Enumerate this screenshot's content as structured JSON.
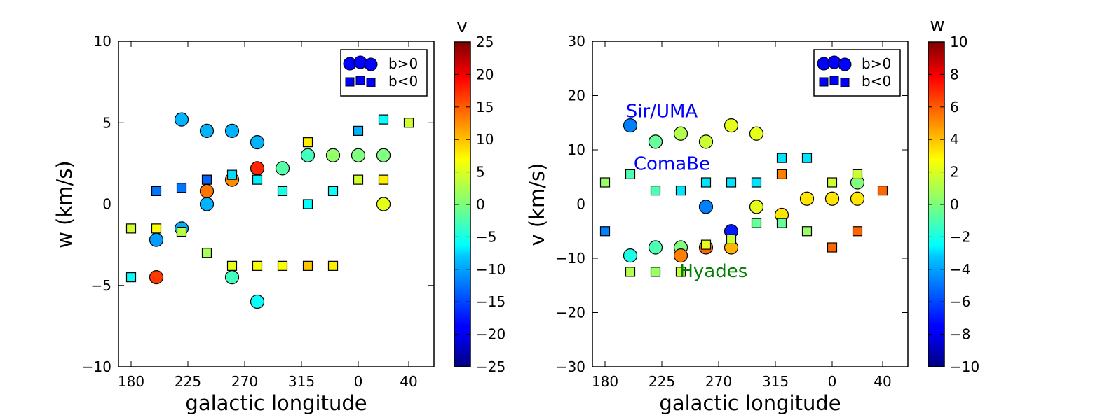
{
  "chart_data": [
    {
      "type": "scatter",
      "xlabel": "galactic longitude",
      "ylabel": "w (km/s)",
      "xticks": [
        "180",
        "225",
        "270",
        "315",
        "0",
        "40"
      ],
      "xtick_values": [
        180,
        225,
        270,
        315,
        360,
        400
      ],
      "xlim": [
        170,
        420
      ],
      "ylim": [
        -10,
        10
      ],
      "yticks": [
        10,
        5,
        0,
        -5,
        -10
      ],
      "ytick_labels": [
        "10",
        "5",
        "0",
        "−5",
        "−10"
      ],
      "grid": false,
      "legend_position": "top-right",
      "legend": [
        {
          "label": "b>0",
          "marker": "circle"
        },
        {
          "label": "b<0",
          "marker": "square"
        }
      ],
      "colorbar": {
        "label": "v",
        "min": -25,
        "max": 25,
        "ticks": [
          25,
          20,
          15,
          10,
          5,
          0,
          -5,
          -10,
          -15,
          -20,
          -25
        ],
        "tick_labels": [
          "25",
          "20",
          "15",
          "10",
          "5",
          "0",
          "−5",
          "−10",
          "−15",
          "−20",
          "−25"
        ]
      },
      "series": [
        {
          "name": "b>0",
          "marker": "circle",
          "points": [
            {
              "x": 200,
              "y": -2.2,
              "c": -11
            },
            {
              "x": 200,
              "y": -4.5,
              "c": 16
            },
            {
              "x": 220,
              "y": 5.2,
              "c": -10
            },
            {
              "x": 220,
              "y": -1.5,
              "c": -10
            },
            {
              "x": 240,
              "y": 4.5,
              "c": -10
            },
            {
              "x": 240,
              "y": 0,
              "c": -10
            },
            {
              "x": 240,
              "y": 0.8,
              "c": 13
            },
            {
              "x": 260,
              "y": 4.5,
              "c": -10
            },
            {
              "x": 260,
              "y": 1.5,
              "c": 12
            },
            {
              "x": 260,
              "y": -4.5,
              "c": -3
            },
            {
              "x": 280,
              "y": 3.8,
              "c": -10
            },
            {
              "x": 280,
              "y": 2.2,
              "c": 17
            },
            {
              "x": 280,
              "y": -6,
              "c": -6
            },
            {
              "x": 300,
              "y": 2.2,
              "c": -2
            },
            {
              "x": 320,
              "y": 3,
              "c": -3
            },
            {
              "x": 340,
              "y": 3,
              "c": 1
            },
            {
              "x": 360,
              "y": 3,
              "c": 0
            },
            {
              "x": 380,
              "y": 3,
              "c": 0
            },
            {
              "x": 380,
              "y": 0,
              "c": 5
            }
          ]
        },
        {
          "name": "b<0",
          "marker": "square",
          "points": [
            {
              "x": 180,
              "y": -1.5,
              "c": 4
            },
            {
              "x": 180,
              "y": -4.5,
              "c": -6
            },
            {
              "x": 200,
              "y": 0.8,
              "c": -13
            },
            {
              "x": 200,
              "y": -1.5,
              "c": 6
            },
            {
              "x": 220,
              "y": 1,
              "c": -13
            },
            {
              "x": 220,
              "y": -1.7,
              "c": 3
            },
            {
              "x": 240,
              "y": 1.5,
              "c": -14
            },
            {
              "x": 240,
              "y": -3,
              "c": 2
            },
            {
              "x": 260,
              "y": 1.8,
              "c": -8
            },
            {
              "x": 260,
              "y": -3.8,
              "c": 5
            },
            {
              "x": 280,
              "y": 1.5,
              "c": -7
            },
            {
              "x": 280,
              "y": -3.8,
              "c": 6
            },
            {
              "x": 300,
              "y": 0.8,
              "c": -5
            },
            {
              "x": 300,
              "y": -3.8,
              "c": 6
            },
            {
              "x": 320,
              "y": 3.8,
              "c": 7
            },
            {
              "x": 320,
              "y": 0,
              "c": -6
            },
            {
              "x": 320,
              "y": -3.8,
              "c": 9
            },
            {
              "x": 340,
              "y": 0.8,
              "c": -6
            },
            {
              "x": 340,
              "y": -3.8,
              "c": 7
            },
            {
              "x": 360,
              "y": 4.5,
              "c": -10
            },
            {
              "x": 360,
              "y": 1.5,
              "c": 4
            },
            {
              "x": 380,
              "y": 5.2,
              "c": -6
            },
            {
              "x": 380,
              "y": 1.5,
              "c": 7
            },
            {
              "x": 400,
              "y": 5,
              "c": 4
            }
          ]
        }
      ]
    },
    {
      "type": "scatter",
      "xlabel": "galactic longitude",
      "ylabel": "v (km/s)",
      "xticks": [
        "180",
        "225",
        "270",
        "315",
        "0",
        "40"
      ],
      "xtick_values": [
        180,
        225,
        270,
        315,
        360,
        400
      ],
      "xlim": [
        170,
        420
      ],
      "ylim": [
        -30,
        30
      ],
      "yticks": [
        30,
        20,
        10,
        0,
        -10,
        -20,
        -30
      ],
      "ytick_labels": [
        "30",
        "20",
        "10",
        "0",
        "−10",
        "−20",
        "−30"
      ],
      "grid": false,
      "legend_position": "top-right",
      "legend": [
        {
          "label": "b>0",
          "marker": "circle"
        },
        {
          "label": "b<0",
          "marker": "square"
        }
      ],
      "annotations": [
        {
          "text": "Sir/UMA",
          "x": 225,
          "y": 16,
          "color": "#0000ff"
        },
        {
          "text": "ComaBe",
          "x": 233,
          "y": 6.3,
          "color": "#0000ff"
        },
        {
          "text": "Hyades",
          "x": 266,
          "y": -13.5,
          "color": "#008000"
        }
      ],
      "colorbar": {
        "label": "w",
        "min": -10,
        "max": 10,
        "ticks": [
          10,
          8,
          6,
          4,
          2,
          0,
          -2,
          -4,
          -6,
          -8,
          -10
        ],
        "tick_labels": [
          "10",
          "8",
          "6",
          "4",
          "2",
          "0",
          "−2",
          "−4",
          "−6",
          "−8",
          "−10"
        ]
      },
      "series": [
        {
          "name": "b>0",
          "marker": "circle",
          "points": [
            {
              "x": 200,
              "y": 14.5,
              "c": -5
            },
            {
              "x": 200,
              "y": -9.5,
              "c": -2
            },
            {
              "x": 220,
              "y": 11.5,
              "c": -0.5
            },
            {
              "x": 220,
              "y": -8,
              "c": -1
            },
            {
              "x": 240,
              "y": 13,
              "c": 1
            },
            {
              "x": 240,
              "y": -8,
              "c": 0
            },
            {
              "x": 240,
              "y": -9.5,
              "c": 5
            },
            {
              "x": 260,
              "y": 11.5,
              "c": 1.5
            },
            {
              "x": 260,
              "y": -0.5,
              "c": -5
            },
            {
              "x": 260,
              "y": -8,
              "c": 5.5
            },
            {
              "x": 280,
              "y": 14.5,
              "c": 2
            },
            {
              "x": 280,
              "y": -5,
              "c": -7
            },
            {
              "x": 280,
              "y": -8,
              "c": 4
            },
            {
              "x": 300,
              "y": 13,
              "c": 2
            },
            {
              "x": 300,
              "y": -0.5,
              "c": 2
            },
            {
              "x": 320,
              "y": -2,
              "c": 3
            },
            {
              "x": 340,
              "y": 1,
              "c": 3
            },
            {
              "x": 360,
              "y": 1,
              "c": 3
            },
            {
              "x": 380,
              "y": 1,
              "c": 3
            },
            {
              "x": 380,
              "y": 4,
              "c": 0
            }
          ]
        },
        {
          "name": "b<0",
          "marker": "square",
          "points": [
            {
              "x": 180,
              "y": 4,
              "c": 0.5
            },
            {
              "x": 180,
              "y": -5,
              "c": -5
            },
            {
              "x": 200,
              "y": 5.5,
              "c": -1
            },
            {
              "x": 200,
              "y": -12.5,
              "c": 1
            },
            {
              "x": 220,
              "y": 2.5,
              "c": -1
            },
            {
              "x": 220,
              "y": -12.5,
              "c": 0.5
            },
            {
              "x": 240,
              "y": 2.5,
              "c": -3
            },
            {
              "x": 240,
              "y": -12.5,
              "c": 1.5
            },
            {
              "x": 260,
              "y": 4,
              "c": -3
            },
            {
              "x": 260,
              "y": -7.5,
              "c": 2
            },
            {
              "x": 280,
              "y": 4,
              "c": -3
            },
            {
              "x": 280,
              "y": -6.5,
              "c": 1.5
            },
            {
              "x": 300,
              "y": 4,
              "c": -3
            },
            {
              "x": 300,
              "y": -3.5,
              "c": -0.5
            },
            {
              "x": 320,
              "y": 8.5,
              "c": -3
            },
            {
              "x": 320,
              "y": 5.5,
              "c": 5
            },
            {
              "x": 320,
              "y": -3.5,
              "c": -0.5
            },
            {
              "x": 340,
              "y": 8.5,
              "c": -3
            },
            {
              "x": 340,
              "y": -5,
              "c": 0.5
            },
            {
              "x": 360,
              "y": 4,
              "c": 1.5
            },
            {
              "x": 360,
              "y": -8,
              "c": 5.5
            },
            {
              "x": 380,
              "y": 5.5,
              "c": 1.5
            },
            {
              "x": 380,
              "y": -5,
              "c": 5.5
            },
            {
              "x": 400,
              "y": 2.5,
              "c": 5.5
            }
          ]
        }
      ]
    }
  ]
}
